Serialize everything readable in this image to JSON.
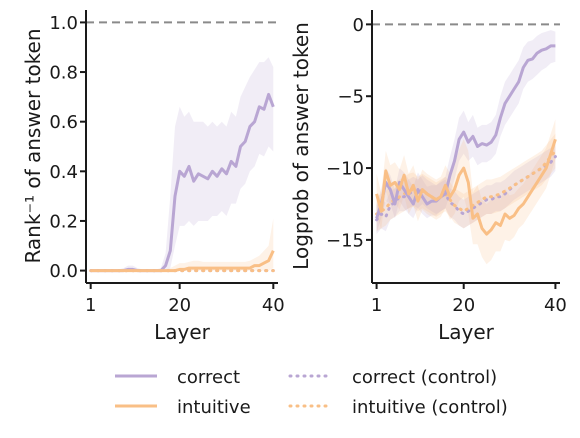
{
  "colors": {
    "correct": "#b9a6d3",
    "intuitive": "#f9bf86",
    "reference_line": "#8a8a8a",
    "axis": "#1a1a1a"
  },
  "legend": {
    "placement": "bottom",
    "items": [
      {
        "label": "correct",
        "series": "correct",
        "style": "solid"
      },
      {
        "label": "intuitive",
        "series": "intuitive",
        "style": "solid"
      },
      {
        "label": "correct (control)",
        "series": "correct",
        "style": "dotted"
      },
      {
        "label": "intuitive (control)",
        "series": "intuitive",
        "style": "dotted"
      }
    ]
  },
  "chart_data": [
    {
      "type": "line",
      "xlabel": "Layer",
      "ylabel": "Rank⁻¹ of answer token",
      "xlim": [
        0,
        41
      ],
      "ylim": [
        -0.05,
        1.05
      ],
      "xticks": [
        1,
        20,
        40
      ],
      "yticks": [
        0.0,
        0.2,
        0.4,
        0.6,
        0.8,
        1.0
      ],
      "ytick_labels": [
        "0.0",
        "0.2",
        "0.4",
        "0.6",
        "0.8",
        "1.0"
      ],
      "grid": false,
      "reference_line": 1.0,
      "x": [
        1,
        2,
        3,
        4,
        5,
        6,
        7,
        8,
        9,
        10,
        11,
        12,
        13,
        14,
        15,
        16,
        17,
        18,
        19,
        20,
        21,
        22,
        23,
        24,
        25,
        26,
        27,
        28,
        29,
        30,
        31,
        32,
        33,
        34,
        35,
        36,
        37,
        38,
        39,
        40
      ],
      "series": [
        {
          "name": "correct",
          "style": "solid",
          "color_key": "correct",
          "values": [
            0,
            0,
            0,
            0,
            0,
            0,
            0,
            0,
            0.005,
            0.005,
            0,
            0,
            0,
            0,
            0,
            0,
            0.02,
            0.08,
            0.3,
            0.4,
            0.38,
            0.42,
            0.36,
            0.39,
            0.38,
            0.37,
            0.4,
            0.38,
            0.41,
            0.39,
            0.44,
            0.42,
            0.5,
            0.52,
            0.58,
            0.6,
            0.66,
            0.65,
            0.71,
            0.66
          ],
          "band_low": [
            0,
            0,
            0,
            0,
            0,
            0,
            0,
            0,
            0,
            0,
            0,
            0,
            0,
            0,
            0,
            0,
            0,
            0.01,
            0.1,
            0.18,
            0.18,
            0.2,
            0.18,
            0.2,
            0.2,
            0.2,
            0.22,
            0.22,
            0.24,
            0.22,
            0.27,
            0.27,
            0.33,
            0.35,
            0.4,
            0.42,
            0.47,
            0.46,
            0.5,
            0.48
          ],
          "band_high": [
            0.005,
            0.005,
            0.005,
            0.005,
            0.005,
            0.005,
            0.005,
            0.01,
            0.02,
            0.02,
            0.01,
            0.005,
            0.005,
            0.005,
            0.005,
            0.01,
            0.07,
            0.3,
            0.58,
            0.66,
            0.62,
            0.64,
            0.6,
            0.6,
            0.6,
            0.58,
            0.6,
            0.58,
            0.6,
            0.58,
            0.64,
            0.62,
            0.7,
            0.74,
            0.78,
            0.81,
            0.84,
            0.84,
            0.86,
            0.82
          ]
        },
        {
          "name": "intuitive",
          "style": "solid",
          "color_key": "intuitive",
          "values": [
            0,
            0,
            0,
            0,
            0,
            0,
            0,
            0,
            0,
            0,
            0,
            0,
            0,
            0,
            0,
            0,
            0,
            0,
            0,
            0.005,
            0.005,
            0.01,
            0.01,
            0.01,
            0.01,
            0.01,
            0.01,
            0.01,
            0.01,
            0.01,
            0.01,
            0.01,
            0.01,
            0.01,
            0.01,
            0.02,
            0.02,
            0.03,
            0.04,
            0.08
          ],
          "band_low": [
            0,
            0,
            0,
            0,
            0,
            0,
            0,
            0,
            0,
            0,
            0,
            0,
            0,
            0,
            0,
            0,
            0,
            0,
            0,
            0,
            0,
            0,
            0,
            0,
            0,
            0,
            0,
            0,
            0,
            0,
            0,
            0,
            0,
            0,
            0,
            0,
            0,
            0,
            0,
            0.01
          ],
          "band_high": [
            0.005,
            0.005,
            0.005,
            0.005,
            0.005,
            0.005,
            0.005,
            0.005,
            0.005,
            0.005,
            0.005,
            0.005,
            0.005,
            0.005,
            0.005,
            0.005,
            0.005,
            0.01,
            0.02,
            0.03,
            0.03,
            0.035,
            0.04,
            0.04,
            0.035,
            0.035,
            0.035,
            0.035,
            0.035,
            0.035,
            0.035,
            0.035,
            0.035,
            0.035,
            0.04,
            0.05,
            0.06,
            0.08,
            0.1,
            0.21
          ]
        },
        {
          "name": "correct (control)",
          "style": "dotted",
          "color_key": "correct",
          "values": [
            0,
            0,
            0,
            0,
            0,
            0,
            0,
            0,
            0,
            0,
            0,
            0,
            0,
            0,
            0,
            0,
            0,
            0,
            0,
            0,
            0,
            0,
            0,
            0,
            0,
            0,
            0,
            0,
            0,
            0,
            0,
            0,
            0,
            0,
            0,
            0,
            0,
            0,
            0,
            0
          ]
        },
        {
          "name": "intuitive (control)",
          "style": "dotted",
          "color_key": "intuitive",
          "values": [
            0,
            0,
            0,
            0,
            0,
            0,
            0,
            0,
            0,
            0,
            0,
            0,
            0,
            0,
            0,
            0,
            0,
            0,
            0,
            0,
            0,
            0,
            0,
            0,
            0,
            0,
            0,
            0,
            0,
            0,
            0,
            0,
            0,
            0,
            0,
            0,
            0,
            0,
            0,
            0
          ]
        }
      ]
    },
    {
      "type": "line",
      "xlabel": "Layer",
      "ylabel": "Logprob of answer token",
      "xlim": [
        0,
        41
      ],
      "ylim": [
        -18,
        1
      ],
      "xticks": [
        1,
        20,
        40
      ],
      "yticks": [
        0,
        -5,
        -10,
        -15
      ],
      "ytick_labels": [
        "0",
        "−5",
        "−10",
        "−15"
      ],
      "grid": false,
      "reference_line": 0,
      "x": [
        1,
        2,
        3,
        4,
        5,
        6,
        7,
        8,
        9,
        10,
        11,
        12,
        13,
        14,
        15,
        16,
        17,
        18,
        19,
        20,
        21,
        22,
        23,
        24,
        25,
        26,
        27,
        28,
        29,
        30,
        31,
        32,
        33,
        34,
        35,
        36,
        37,
        38,
        39,
        40
      ],
      "series": [
        {
          "name": "correct",
          "style": "solid",
          "color_key": "correct",
          "values": [
            -13.5,
            -12.5,
            -11,
            -11.5,
            -12.5,
            -11,
            -11.5,
            -12,
            -12.5,
            -11.5,
            -12,
            -12.5,
            -12.3,
            -12.3,
            -12,
            -11.8,
            -10.5,
            -9.5,
            -8,
            -7.5,
            -8.2,
            -7.8,
            -8.5,
            -8.3,
            -8.4,
            -8.2,
            -7.7,
            -6.5,
            -5.5,
            -5,
            -4.5,
            -4,
            -3,
            -2.5,
            -2.4,
            -2,
            -1.8,
            -1.7,
            -1.5,
            -1.5
          ],
          "band_low": [
            -14.5,
            -13.5,
            -12.3,
            -12.5,
            -13.5,
            -12.3,
            -12.8,
            -13.2,
            -13.5,
            -12.8,
            -13.2,
            -13.5,
            -13.3,
            -13.3,
            -13,
            -12.8,
            -11.8,
            -10.8,
            -9.5,
            -9,
            -9.5,
            -9.2,
            -9.8,
            -9.6,
            -9.6,
            -9.4,
            -9,
            -7.8,
            -7,
            -6.5,
            -6,
            -5.5,
            -4.5,
            -4,
            -3.8,
            -3.5,
            -3.2,
            -3,
            -2.7,
            -2.6
          ],
          "band_high": [
            -12.5,
            -11.5,
            -10,
            -10.5,
            -11.5,
            -10,
            -10.3,
            -10.8,
            -11.3,
            -10.3,
            -10.8,
            -11.3,
            -11.2,
            -11.2,
            -10.9,
            -10.6,
            -9.2,
            -8,
            -6.5,
            -6,
            -6.8,
            -6.3,
            -7.2,
            -7,
            -7,
            -6.8,
            -6.3,
            -5,
            -4,
            -3.5,
            -3,
            -2.5,
            -1.6,
            -1.2,
            -1.1,
            -0.8,
            -0.6,
            -0.5,
            -0.4,
            -0.5
          ]
        },
        {
          "name": "intuitive",
          "style": "solid",
          "color_key": "intuitive",
          "values": [
            -11.8,
            -13,
            -10.2,
            -11.2,
            -11,
            -11.5,
            -10.5,
            -11.8,
            -11.2,
            -12.3,
            -11.5,
            -11.8,
            -12,
            -12.2,
            -12,
            -11.2,
            -12,
            -11.5,
            -10.5,
            -10,
            -11,
            -13.5,
            -13.2,
            -14.2,
            -14.6,
            -14.3,
            -13.8,
            -14,
            -13.2,
            -13.5,
            -13.3,
            -12.8,
            -12.5,
            -12,
            -11.5,
            -11,
            -10.5,
            -10,
            -9,
            -8
          ],
          "band_low": [
            -13.2,
            -14.3,
            -11.6,
            -12.6,
            -12.4,
            -12.9,
            -11.9,
            -13.2,
            -12.6,
            -13.7,
            -12.9,
            -13.2,
            -13.4,
            -13.6,
            -13.4,
            -12.8,
            -13.6,
            -13.2,
            -12.3,
            -12,
            -13.2,
            -15.3,
            -15.3,
            -16.2,
            -16.7,
            -16.4,
            -15.8,
            -15.8,
            -15,
            -15.1,
            -14.8,
            -14.2,
            -13.9,
            -13.4,
            -12.9,
            -12.4,
            -11.9,
            -11.4,
            -10.4,
            -9.4
          ],
          "band_high": [
            -10.4,
            -11.7,
            -8.8,
            -9.8,
            -9.6,
            -10.1,
            -9.1,
            -10.4,
            -9.8,
            -10.9,
            -10.1,
            -10.4,
            -10.6,
            -10.8,
            -10.6,
            -9.8,
            -10.4,
            -9.8,
            -8.7,
            -8,
            -8.8,
            -11.7,
            -11.2,
            -12.2,
            -12.5,
            -12.2,
            -11.8,
            -12.2,
            -11.4,
            -11.9,
            -11.8,
            -11.4,
            -11.1,
            -10.6,
            -10.1,
            -9.6,
            -9.1,
            -8.6,
            -7.6,
            -6.6
          ]
        },
        {
          "name": "correct (control)",
          "style": "dotted",
          "color_key": "correct",
          "values": [
            -13.6,
            -13.2,
            -13.4,
            -12.6,
            -12.4,
            -12,
            -12,
            -11.8,
            -11.6,
            -11.8,
            -11.5,
            -11.8,
            -12,
            -12.2,
            -12,
            -11.8,
            -12.4,
            -12.6,
            -13,
            -13.2,
            -13,
            -12.8,
            -12.6,
            -12.4,
            -12.2,
            -12.2,
            -12,
            -12,
            -11.8,
            -11.5,
            -11.2,
            -11,
            -10.8,
            -10.6,
            -10.4,
            -10.2,
            -10,
            -9.8,
            -9.6,
            -9.2
          ],
          "band_low": [
            -14.6,
            -14.2,
            -14.4,
            -13.6,
            -13.4,
            -13,
            -13,
            -12.8,
            -12.6,
            -12.8,
            -12.5,
            -12.8,
            -13,
            -13.2,
            -13,
            -12.8,
            -13.4,
            -13.6,
            -14,
            -14.2,
            -14,
            -13.8,
            -13.6,
            -13.4,
            -13.2,
            -13.2,
            -13,
            -13,
            -12.8,
            -12.5,
            -12.2,
            -12,
            -11.8,
            -11.6,
            -11.4,
            -11.2,
            -11,
            -10.8,
            -10.6,
            -10.2
          ],
          "band_high": [
            -12.6,
            -12.2,
            -12.4,
            -11.6,
            -11.4,
            -11,
            -11,
            -10.8,
            -10.6,
            -10.8,
            -10.5,
            -10.8,
            -11,
            -11.2,
            -11,
            -10.8,
            -11.4,
            -11.6,
            -12,
            -12.2,
            -12,
            -11.8,
            -11.6,
            -11.4,
            -11.2,
            -11.2,
            -11,
            -11,
            -10.8,
            -10.5,
            -10.2,
            -10,
            -9.8,
            -9.6,
            -9.4,
            -9.2,
            -9,
            -8.8,
            -8.6,
            -8.2
          ]
        },
        {
          "name": "intuitive (control)",
          "style": "dotted",
          "color_key": "intuitive",
          "values": [
            -13.2,
            -13,
            -12.8,
            -12.4,
            -12.2,
            -12,
            -11.8,
            -11.6,
            -11.5,
            -11.8,
            -11.6,
            -11.8,
            -12,
            -12.2,
            -12,
            -11.8,
            -12.2,
            -12.6,
            -12.8,
            -13,
            -12.8,
            -12.6,
            -12.4,
            -12.2,
            -12,
            -12,
            -11.9,
            -11.8,
            -11.6,
            -11.4,
            -11.2,
            -11,
            -10.8,
            -10.6,
            -10.4,
            -10.2,
            -10,
            -9.6,
            -9.2,
            -8.8
          ],
          "band_low": [
            -14.4,
            -14.2,
            -14,
            -13.6,
            -13.4,
            -13.2,
            -13,
            -12.8,
            -12.7,
            -13,
            -12.8,
            -13,
            -13.2,
            -13.4,
            -13.2,
            -13,
            -13.4,
            -13.8,
            -14,
            -14.2,
            -14,
            -13.8,
            -13.6,
            -13.4,
            -13.2,
            -13.2,
            -13.1,
            -13,
            -12.8,
            -12.6,
            -12.4,
            -12.2,
            -12,
            -11.8,
            -11.6,
            -11.4,
            -11.2,
            -10.8,
            -10.4,
            -10
          ],
          "band_high": [
            -12,
            -11.8,
            -11.6,
            -11.2,
            -11,
            -10.8,
            -10.6,
            -10.4,
            -10.3,
            -10.6,
            -10.4,
            -10.6,
            -10.8,
            -11,
            -10.8,
            -10.6,
            -11,
            -11.4,
            -11.6,
            -11.8,
            -11.6,
            -11.4,
            -11.2,
            -11,
            -10.8,
            -10.8,
            -10.7,
            -10.6,
            -10.4,
            -10.2,
            -10,
            -9.8,
            -9.6,
            -9.4,
            -9.2,
            -9,
            -8.8,
            -8.4,
            -8,
            -7.6
          ]
        }
      ]
    }
  ]
}
